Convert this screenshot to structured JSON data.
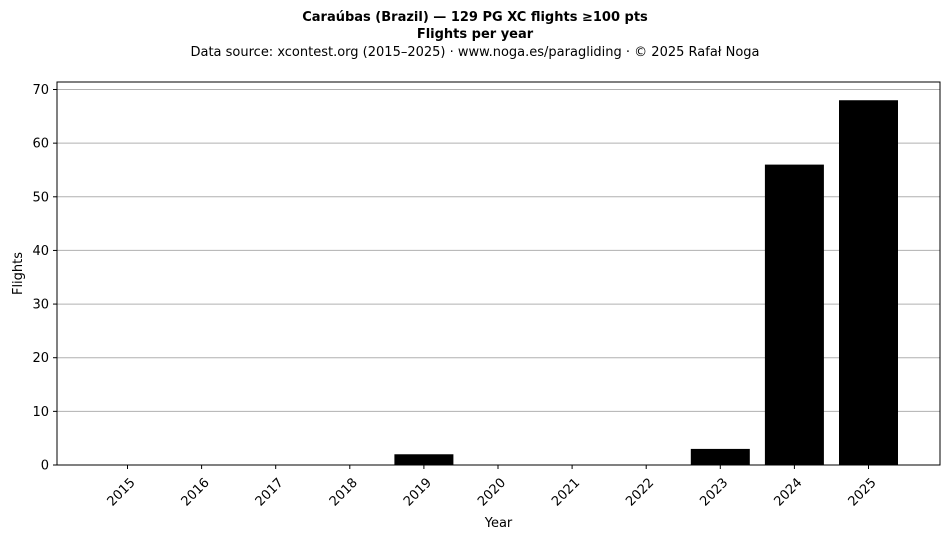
{
  "chart_data": {
    "type": "bar",
    "title": "Caraúbas (Brazil)  —  129 PG XC flights ≥100 pts",
    "title_line2": "Flights per year",
    "subtitle": "Data source: xcontest.org (2015–2025)  ·  www.noga.es/paragliding  ·  © 2025 Rafał Noga",
    "xlabel": "Year",
    "ylabel": "Flights",
    "categories": [
      "2015",
      "2016",
      "2017",
      "2018",
      "2019",
      "2020",
      "2021",
      "2022",
      "2023",
      "2024",
      "2025"
    ],
    "values": [
      0,
      0,
      0,
      0,
      2,
      0,
      0,
      0,
      3,
      56,
      68
    ],
    "ylim": [
      0,
      71.4
    ],
    "yticks": [
      0,
      10,
      20,
      30,
      40,
      50,
      60,
      70
    ],
    "grid": "y",
    "bar_color": "#000000",
    "grid_color": "#b0b0b0"
  }
}
